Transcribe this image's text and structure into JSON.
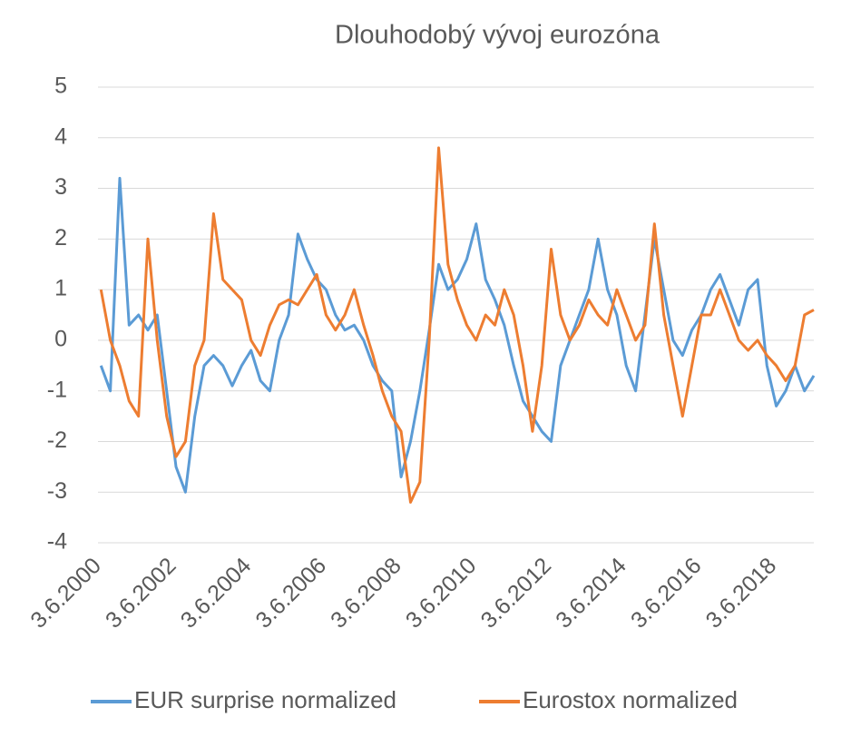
{
  "chart_data": {
    "type": "line",
    "title": "Dlouhodobý vývoj eurozóna",
    "x": [
      2000.5,
      2000.75,
      2001,
      2001.25,
      2001.5,
      2001.75,
      2002,
      2002.25,
      2002.5,
      2002.75,
      2003,
      2003.25,
      2003.5,
      2003.75,
      2004,
      2004.25,
      2004.5,
      2004.75,
      2005,
      2005.25,
      2005.5,
      2005.75,
      2006,
      2006.25,
      2006.5,
      2006.75,
      2007,
      2007.25,
      2007.5,
      2007.75,
      2008,
      2008.25,
      2008.5,
      2008.75,
      2009,
      2009.25,
      2009.5,
      2009.75,
      2010,
      2010.25,
      2010.5,
      2010.75,
      2011,
      2011.25,
      2011.5,
      2011.75,
      2012,
      2012.25,
      2012.5,
      2012.75,
      2013,
      2013.25,
      2013.5,
      2013.75,
      2014,
      2014.25,
      2014.5,
      2014.75,
      2015,
      2015.25,
      2015.5,
      2015.75,
      2016,
      2016.25,
      2016.5,
      2016.75,
      2017,
      2017.25,
      2017.5,
      2017.75,
      2018,
      2018.25,
      2018.5,
      2018.75,
      2019,
      2019.25,
      2019.5
    ],
    "series": [
      {
        "name": "EUR surprise normalized",
        "color": "#5b9bd5",
        "values": [
          -0.5,
          -1.0,
          3.2,
          0.3,
          0.5,
          0.2,
          0.5,
          -1.0,
          -2.5,
          -3.0,
          -1.5,
          -0.5,
          -0.3,
          -0.5,
          -0.9,
          -0.5,
          -0.2,
          -0.8,
          -1.0,
          0.0,
          0.5,
          2.1,
          1.6,
          1.2,
          1.0,
          0.5,
          0.2,
          0.3,
          0.0,
          -0.5,
          -0.8,
          -1.0,
          -2.7,
          -2.0,
          -1.0,
          0.2,
          1.5,
          1.0,
          1.2,
          1.6,
          2.3,
          1.2,
          0.8,
          0.3,
          -0.5,
          -1.2,
          -1.5,
          -1.8,
          -2.0,
          -0.5,
          0.0,
          0.5,
          1.0,
          2.0,
          1.0,
          0.5,
          -0.5,
          -1.0,
          0.5,
          2.0,
          1.0,
          0.0,
          -0.3,
          0.2,
          0.5,
          1.0,
          1.3,
          0.8,
          0.3,
          1.0,
          1.2,
          -0.5,
          -1.3,
          -1.0,
          -0.5,
          -1.0,
          -0.7
        ]
      },
      {
        "name": "Eurostox normalized",
        "color": "#ed7d31",
        "values": [
          1.0,
          0.0,
          -0.5,
          -1.2,
          -1.5,
          2.0,
          0.0,
          -1.5,
          -2.3,
          -2.0,
          -0.5,
          0.0,
          2.5,
          1.2,
          1.0,
          0.8,
          0.0,
          -0.3,
          0.3,
          0.7,
          0.8,
          0.7,
          1.0,
          1.3,
          0.5,
          0.2,
          0.5,
          1.0,
          0.3,
          -0.3,
          -1.0,
          -1.5,
          -1.8,
          -3.2,
          -2.8,
          0.0,
          3.8,
          1.5,
          0.8,
          0.3,
          0.0,
          0.5,
          0.3,
          1.0,
          0.5,
          -0.5,
          -1.8,
          -0.5,
          1.8,
          0.5,
          0.0,
          0.3,
          0.8,
          0.5,
          0.3,
          1.0,
          0.5,
          0.0,
          0.3,
          2.3,
          0.5,
          -0.5,
          -1.5,
          -0.5,
          0.5,
          0.5,
          1.0,
          0.5,
          0.0,
          -0.2,
          0.0,
          -0.3,
          -0.5,
          -0.8,
          -0.5,
          0.5,
          0.6
        ]
      }
    ],
    "xlim": [
      2000.42,
      2019.5
    ],
    "xticks": [
      {
        "value": 2000.42,
        "label": "3.6.2000"
      },
      {
        "value": 2002.42,
        "label": "3.6.2002"
      },
      {
        "value": 2004.42,
        "label": "3.6.2004"
      },
      {
        "value": 2006.42,
        "label": "3.6.2006"
      },
      {
        "value": 2008.42,
        "label": "3.6.2008"
      },
      {
        "value": 2010.42,
        "label": "3.6.2010"
      },
      {
        "value": 2012.42,
        "label": "3.6.2012"
      },
      {
        "value": 2014.42,
        "label": "3.6.2014"
      },
      {
        "value": 2016.42,
        "label": "3.6.2016"
      },
      {
        "value": 2018.42,
        "label": "3.6.2018"
      }
    ],
    "ylim": [
      -4,
      5
    ],
    "yticks": [
      -4,
      -3,
      -2,
      -1,
      0,
      1,
      2,
      3,
      4,
      5
    ],
    "grid": true,
    "legend": "bottom"
  }
}
